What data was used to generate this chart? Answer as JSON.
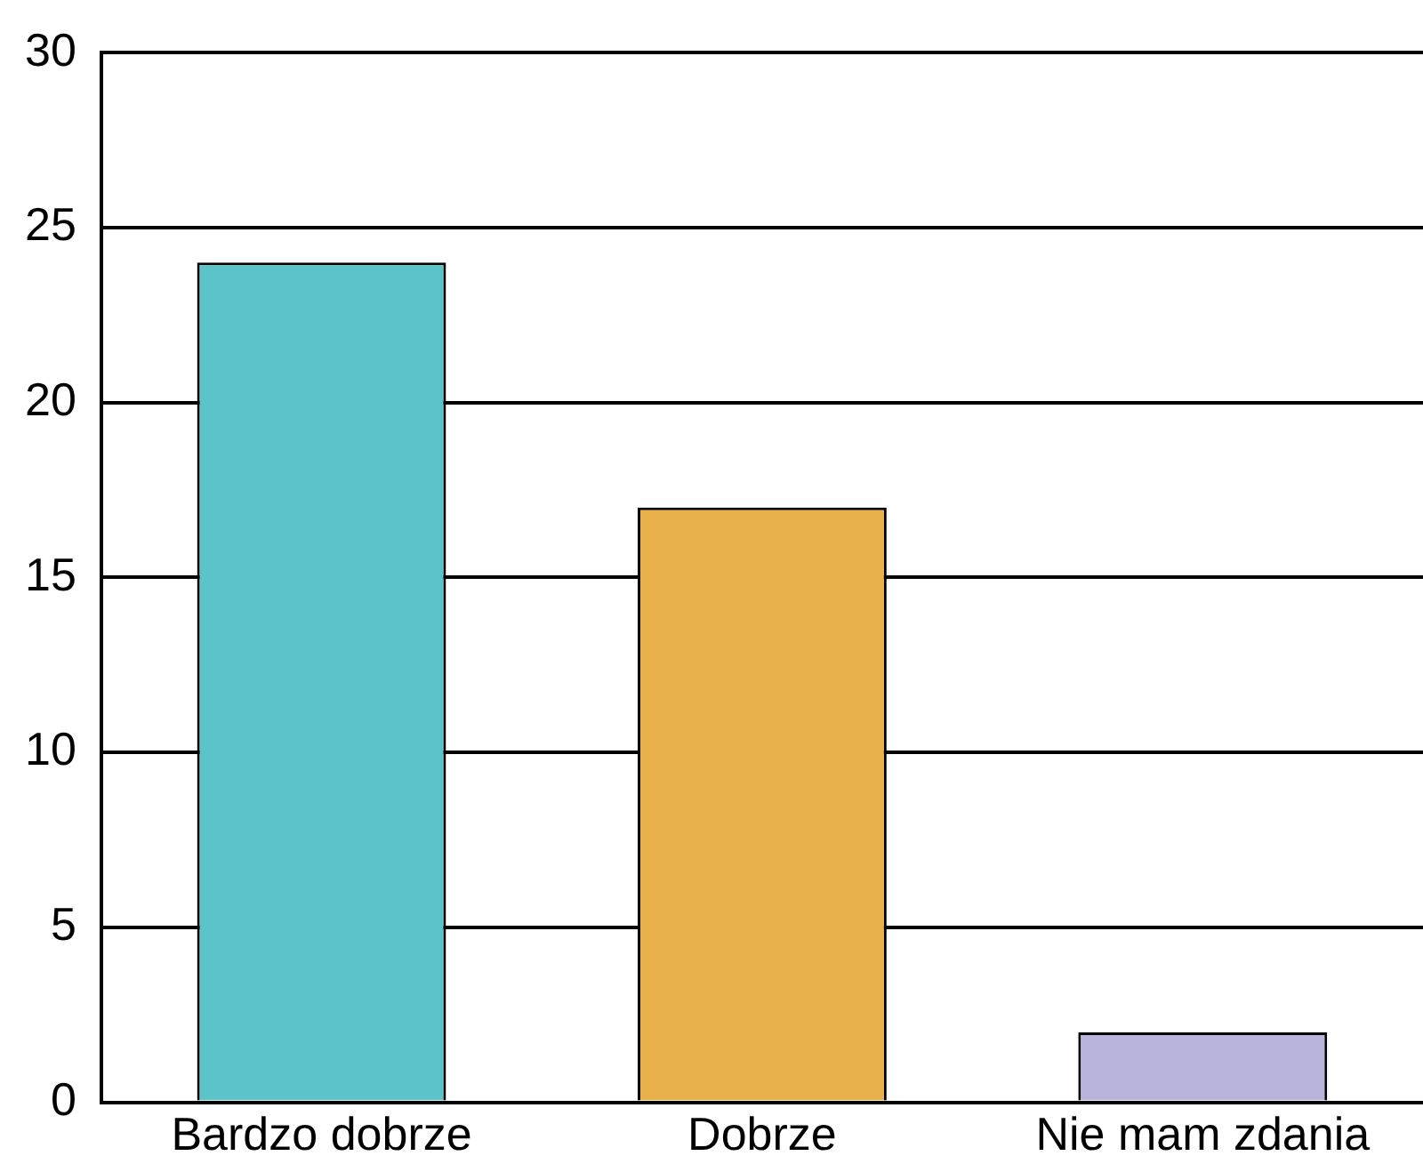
{
  "chart_data": {
    "type": "bar",
    "categories": [
      "Bardzo dobrze",
      "Dobrze",
      "Nie mam zdania"
    ],
    "values": [
      24,
      17,
      2
    ],
    "colors": [
      "#5cc4c8",
      "#e8b04a",
      "#b8b4dc"
    ],
    "ylim": [
      0,
      30
    ],
    "yticks": [
      0,
      5,
      10,
      15,
      20,
      25,
      30
    ],
    "grid": "y",
    "legend": false
  }
}
